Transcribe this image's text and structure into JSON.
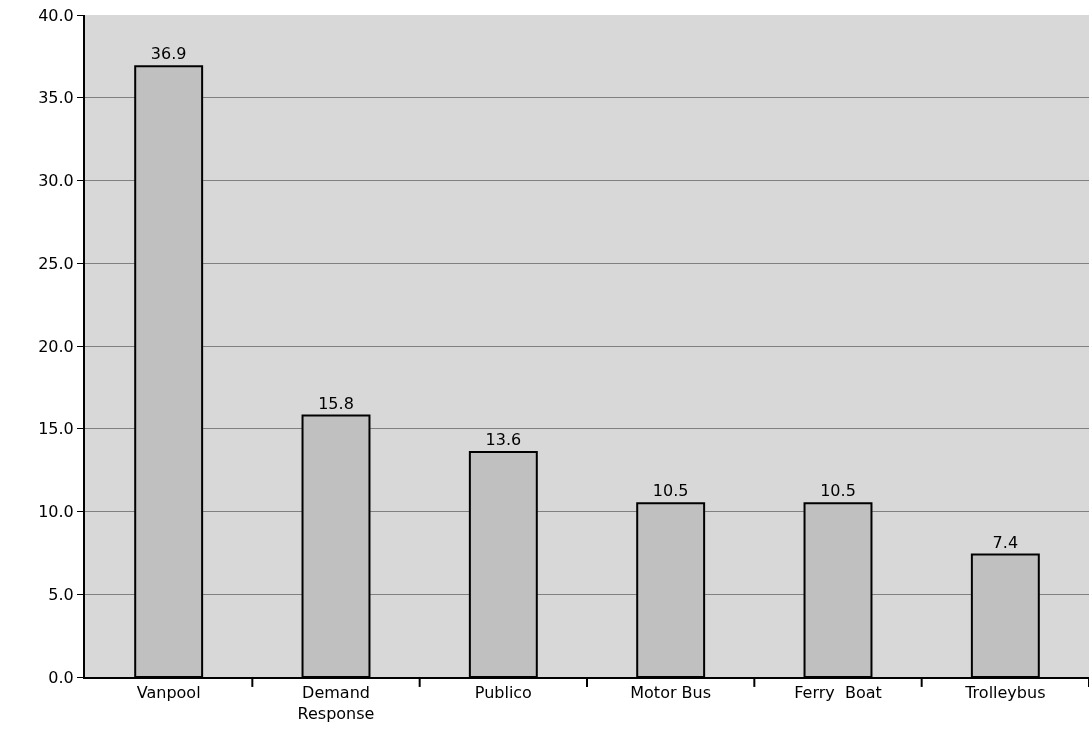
{
  "chart_data": {
    "type": "bar",
    "categories": [
      "Vanpool",
      "Demand\nResponse",
      "Publico",
      "Motor Bus",
      "Ferry  Boat",
      "Trolleybus"
    ],
    "values": [
      36.9,
      15.8,
      13.6,
      10.5,
      10.5,
      7.4
    ],
    "color": "#c0c0c0",
    "ylim": [
      0,
      40
    ],
    "yticks": [
      {
        "value": 0,
        "label": "0.0"
      },
      {
        "value": 5,
        "label": "5.0"
      },
      {
        "value": 10,
        "label": "10.0"
      },
      {
        "value": 15,
        "label": "15.0"
      },
      {
        "value": 20,
        "label": "20.0"
      },
      {
        "value": 25,
        "label": "25.0"
      },
      {
        "value": 30,
        "label": "30.0"
      },
      {
        "value": 35,
        "label": "35.0"
      },
      {
        "value": 40,
        "label": "40.0"
      }
    ],
    "grid": "y",
    "data_labels": true
  }
}
